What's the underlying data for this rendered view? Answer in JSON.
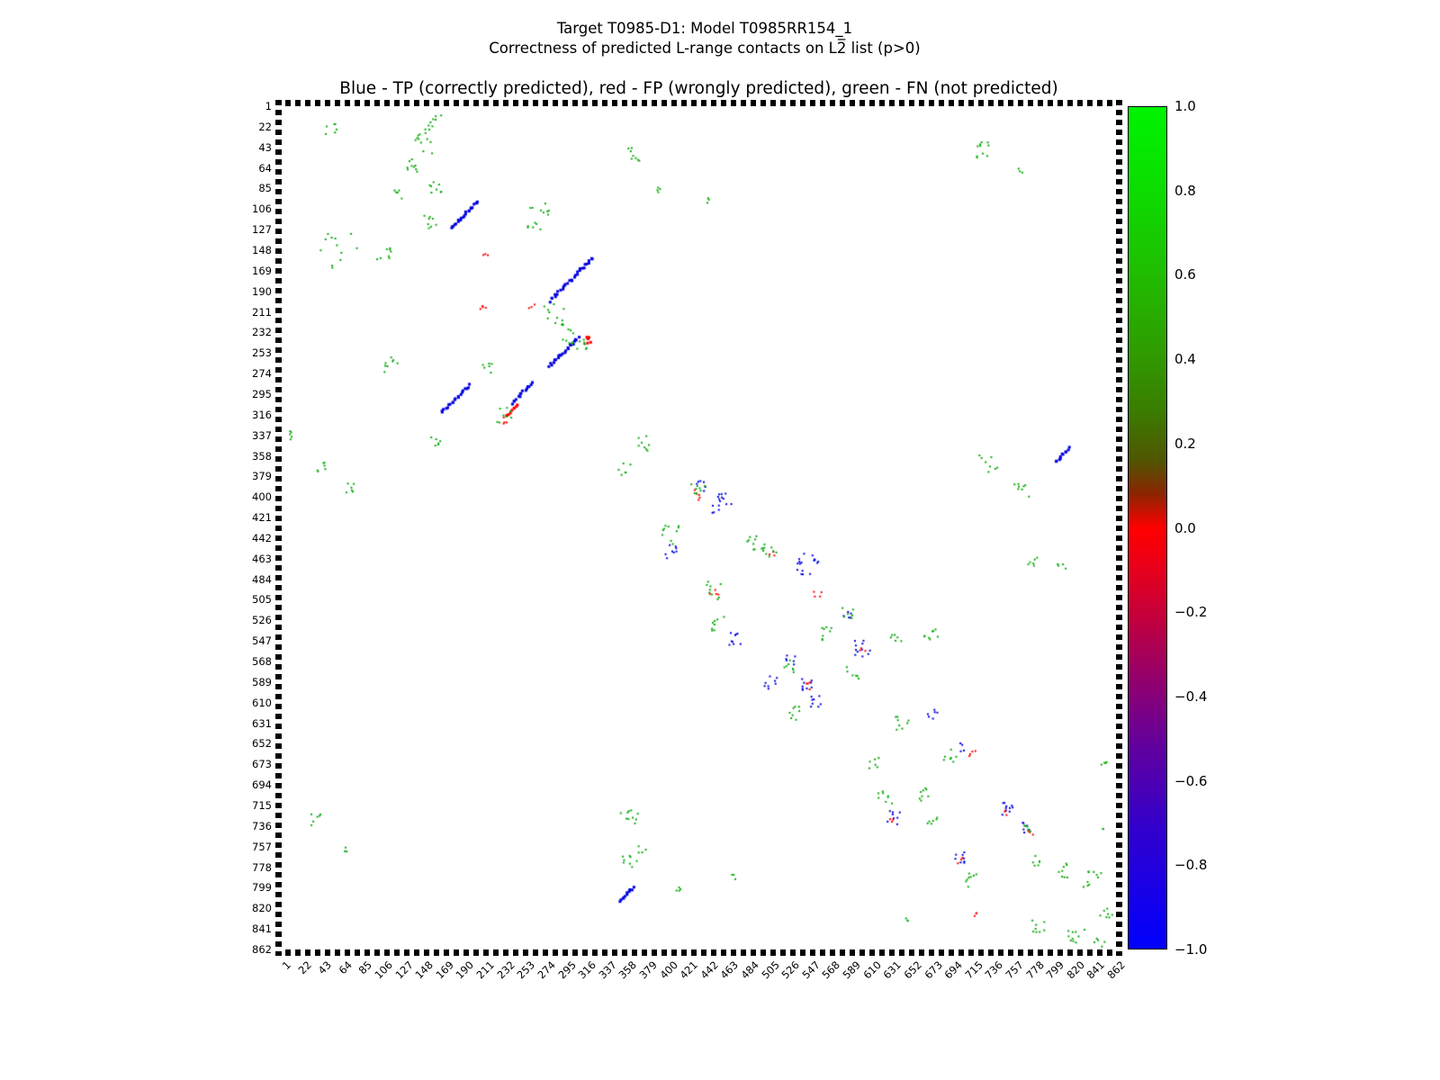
{
  "figure": {
    "title_line1": "Target T0985-D1: Model T0985RR154_1",
    "title_line2": "Correctness of predicted L-range contacts on L2̅ list (p>0)",
    "axes_title": "Blue - TP (correctly predicted), red - FP (wrongly predicted), green - FN (not predicted)"
  },
  "chart_data": {
    "type": "scatter",
    "title": "Target T0985-D1: Model T0985RR154_1 — Correctness of predicted L-range contacts on L2̅ list (p>0)",
    "legend_note": "Blue - TP (correctly predicted), red - FP (wrongly predicted), green - FN (not predicted)",
    "xlim": [
      1,
      862
    ],
    "ylim": [
      1,
      862
    ],
    "y_axis_inverted": true,
    "grid": false,
    "axis_ticks": [
      1,
      22,
      43,
      64,
      85,
      106,
      127,
      148,
      169,
      190,
      211,
      232,
      253,
      274,
      295,
      316,
      337,
      358,
      379,
      400,
      421,
      442,
      463,
      484,
      505,
      526,
      547,
      568,
      589,
      610,
      631,
      652,
      673,
      694,
      715,
      736,
      757,
      778,
      799,
      820,
      841,
      862
    ],
    "cluster_format": "[center_x, center_y, n_points, length_or_radius, direction(0=blob,-1=antidiagonal streak), jitter, point_size_px]",
    "series": [
      {
        "name": "TP (correctly predicted)",
        "color": "#0000e0",
        "clusters": [
          [
            190,
            112,
            22,
            28,
            -1,
            1.3,
            3
          ],
          [
            300,
            178,
            30,
            44,
            -1,
            1.4,
            3
          ],
          [
            292,
            252,
            22,
            30,
            -1,
            1.4,
            3
          ],
          [
            180,
            300,
            20,
            28,
            -1,
            1.3,
            3
          ],
          [
            249,
            294,
            15,
            20,
            -1,
            1.2,
            3
          ],
          [
            807,
            357,
            11,
            14,
            -1,
            1.1,
            3
          ],
          [
            357,
            806,
            11,
            14,
            -1,
            1.1,
            3
          ],
          [
            455,
            406,
            15,
            13,
            0,
            0,
            2
          ],
          [
            545,
            468,
            17,
            15,
            0,
            0,
            2
          ],
          [
            600,
            555,
            11,
            11,
            0,
            0,
            2
          ],
          [
            505,
            590,
            8,
            9,
            0,
            0,
            2
          ],
          [
            543,
            593,
            9,
            9,
            0,
            0,
            2
          ],
          [
            552,
            608,
            8,
            8,
            0,
            0,
            2
          ],
          [
            632,
            727,
            8,
            9,
            0,
            0,
            2
          ],
          [
            750,
            717,
            10,
            10,
            0,
            0,
            2
          ],
          [
            700,
            768,
            8,
            9,
            0,
            0,
            2
          ],
          [
            672,
            622,
            6,
            7,
            0,
            0,
            2
          ],
          [
            527,
            568,
            6,
            8,
            0,
            0,
            2
          ],
          [
            435,
            390,
            6,
            8,
            0,
            0,
            2
          ],
          [
            705,
            656,
            4,
            6,
            0,
            0,
            2
          ],
          [
            772,
            737,
            6,
            8,
            0,
            0,
            2
          ],
          [
            585,
            520,
            5,
            7,
            0,
            0,
            2
          ],
          [
            405,
            455,
            8,
            10,
            0,
            0,
            2
          ],
          [
            468,
            545,
            9,
            11,
            0,
            0,
            2
          ]
        ]
      },
      {
        "name": "FP (wrongly predicted)",
        "color": "#ff0000",
        "clusters": [
          [
            209,
            207,
            4,
            5,
            0,
            0,
            2
          ],
          [
            259,
            206,
            3,
            4,
            0,
            0,
            2
          ],
          [
            318,
            241,
            6,
            6,
            0,
            0,
            3
          ],
          [
            239,
            312,
            9,
            12,
            -1,
            1.2,
            3
          ],
          [
            230,
            322,
            4,
            5,
            0,
            0,
            2
          ],
          [
            211,
            152,
            3,
            4,
            0,
            0,
            2
          ],
          [
            430,
            398,
            5,
            7,
            0,
            0,
            2
          ],
          [
            447,
            496,
            4,
            6,
            0,
            0,
            2
          ],
          [
            555,
            500,
            4,
            6,
            0,
            0,
            2
          ],
          [
            545,
            592,
            4,
            6,
            0,
            0,
            2
          ],
          [
            601,
            558,
            3,
            5,
            0,
            0,
            2
          ],
          [
            713,
            661,
            4,
            5,
            0,
            0,
            2
          ],
          [
            750,
            721,
            3,
            5,
            0,
            0,
            2
          ],
          [
            774,
            741,
            3,
            5,
            0,
            0,
            2
          ],
          [
            700,
            771,
            3,
            5,
            0,
            0,
            2
          ],
          [
            718,
            828,
            3,
            4,
            0,
            0,
            2
          ],
          [
            630,
            730,
            3,
            4,
            0,
            0,
            2
          ],
          [
            508,
            457,
            3,
            5,
            0,
            0,
            2
          ]
        ]
      },
      {
        "name": "FN (not predicted)",
        "color": "#0bab0b",
        "clusters": [
          [
            53,
            25,
            6,
            8,
            0,
            0,
            2
          ],
          [
            152,
            23,
            14,
            24,
            -1,
            2.5,
            2
          ],
          [
            150,
            42,
            6,
            10,
            0,
            0,
            2
          ],
          [
            137,
            62,
            9,
            10,
            0,
            0,
            2
          ],
          [
            160,
            85,
            8,
            9,
            0,
            0,
            2
          ],
          [
            123,
            90,
            5,
            7,
            0,
            0,
            2
          ],
          [
            267,
            103,
            8,
            12,
            0,
            0,
            2
          ],
          [
            363,
            50,
            8,
            10,
            0,
            0,
            2
          ],
          [
            392,
            85,
            4,
            6,
            0,
            0,
            2
          ],
          [
            440,
            98,
            3,
            4,
            0,
            0,
            2
          ],
          [
            60,
            148,
            12,
            24,
            0,
            0,
            2
          ],
          [
            105,
            155,
            8,
            12,
            0,
            0,
            2
          ],
          [
            155,
            120,
            8,
            10,
            0,
            0,
            2
          ],
          [
            262,
            125,
            6,
            9,
            0,
            0,
            2
          ],
          [
            282,
            213,
            12,
            15,
            0,
            0,
            2
          ],
          [
            296,
            236,
            8,
            10,
            0,
            0,
            2
          ],
          [
            312,
            244,
            8,
            8,
            0,
            0,
            2
          ],
          [
            115,
            265,
            8,
            10,
            0,
            0,
            2
          ],
          [
            215,
            270,
            6,
            8,
            0,
            0,
            2
          ],
          [
            231,
            317,
            8,
            10,
            0,
            0,
            2
          ],
          [
            160,
            345,
            6,
            8,
            0,
            0,
            2
          ],
          [
            10,
            337,
            5,
            6,
            0,
            0,
            2
          ],
          [
            42,
            368,
            6,
            8,
            0,
            0,
            2
          ],
          [
            70,
            392,
            6,
            8,
            0,
            0,
            2
          ],
          [
            727,
            46,
            10,
            12,
            0,
            0,
            2
          ],
          [
            764,
            66,
            3,
            4,
            0,
            0,
            2
          ],
          [
            730,
            365,
            8,
            12,
            0,
            0,
            2
          ],
          [
            765,
            392,
            8,
            10,
            0,
            0,
            2
          ],
          [
            777,
            468,
            6,
            8,
            0,
            0,
            2
          ],
          [
            806,
            470,
            4,
            6,
            0,
            0,
            2
          ],
          [
            375,
            345,
            8,
            10,
            0,
            0,
            2
          ],
          [
            355,
            372,
            6,
            8,
            0,
            0,
            2
          ],
          [
            400,
            440,
            10,
            14,
            0,
            0,
            2
          ],
          [
            430,
            394,
            8,
            10,
            0,
            0,
            2
          ],
          [
            485,
            448,
            8,
            10,
            0,
            0,
            2
          ],
          [
            505,
            455,
            10,
            12,
            0,
            0,
            2
          ],
          [
            445,
            495,
            9,
            12,
            0,
            0,
            2
          ],
          [
            453,
            530,
            8,
            10,
            0,
            0,
            2
          ],
          [
            585,
            518,
            6,
            8,
            0,
            0,
            2
          ],
          [
            565,
            540,
            8,
            10,
            0,
            0,
            2
          ],
          [
            635,
            545,
            6,
            8,
            0,
            0,
            2
          ],
          [
            672,
            540,
            8,
            10,
            0,
            0,
            2
          ],
          [
            527,
            572,
            7,
            9,
            0,
            0,
            2
          ],
          [
            590,
            580,
            6,
            8,
            0,
            0,
            2
          ],
          [
            532,
            622,
            8,
            10,
            0,
            0,
            2
          ],
          [
            640,
            630,
            8,
            10,
            0,
            0,
            2
          ],
          [
            690,
            665,
            8,
            10,
            0,
            0,
            2
          ],
          [
            612,
            672,
            6,
            8,
            0,
            0,
            2
          ],
          [
            623,
            705,
            8,
            10,
            0,
            0,
            2
          ],
          [
            663,
            705,
            8,
            10,
            0,
            0,
            2
          ],
          [
            672,
            732,
            6,
            8,
            0,
            0,
            2
          ],
          [
            710,
            790,
            8,
            10,
            0,
            0,
            2
          ],
          [
            777,
            772,
            6,
            8,
            0,
            0,
            2
          ],
          [
            810,
            782,
            8,
            10,
            0,
            0,
            2
          ],
          [
            838,
            790,
            10,
            12,
            0,
            0,
            2
          ],
          [
            782,
            840,
            8,
            10,
            0,
            0,
            2
          ],
          [
            822,
            850,
            10,
            12,
            0,
            0,
            2
          ],
          [
            850,
            823,
            6,
            8,
            0,
            0,
            2
          ],
          [
            845,
            857,
            6,
            8,
            0,
            0,
            2
          ],
          [
            37,
            730,
            6,
            8,
            0,
            0,
            2
          ],
          [
            67,
            760,
            3,
            4,
            0,
            0,
            2
          ],
          [
            360,
            728,
            10,
            12,
            0,
            0,
            2
          ],
          [
            373,
            760,
            4,
            5,
            0,
            0,
            2
          ],
          [
            360,
            772,
            8,
            10,
            0,
            0,
            2
          ],
          [
            410,
            800,
            4,
            6,
            0,
            0,
            2
          ],
          [
            466,
            788,
            3,
            4,
            0,
            0,
            2
          ],
          [
            648,
            833,
            3,
            4,
            0,
            0,
            2
          ],
          [
            850,
            672,
            4,
            5,
            0,
            0,
            2
          ],
          [
            850,
            740,
            2,
            3,
            0,
            0,
            2
          ],
          [
            861,
            828,
            3,
            4,
            0,
            0,
            2
          ],
          [
            773,
            740,
            5,
            7,
            0,
            0,
            2
          ]
        ]
      }
    ],
    "colorbar": {
      "range": [
        -1.0,
        1.0
      ],
      "ticks": [
        "1.0",
        "0.8",
        "0.6",
        "0.4",
        "0.2",
        "0.0",
        "−0.2",
        "−0.4",
        "−0.6",
        "−0.8",
        "−1.0"
      ],
      "gradient_stops": [
        [
          0.0,
          "#00f400"
        ],
        [
          0.1,
          "#0cdc00"
        ],
        [
          0.2,
          "#20bc00"
        ],
        [
          0.29,
          "#2f9c00"
        ],
        [
          0.36,
          "#3a7d00"
        ],
        [
          0.42,
          "#505500"
        ],
        [
          0.46,
          "#8c2400"
        ],
        [
          0.5,
          "#ff0000"
        ],
        [
          0.54,
          "#ec0016"
        ],
        [
          0.61,
          "#c1003e"
        ],
        [
          0.68,
          "#93006d"
        ],
        [
          0.76,
          "#61009e"
        ],
        [
          0.86,
          "#3100ce"
        ],
        [
          1.0,
          "#0000ff"
        ]
      ]
    }
  }
}
